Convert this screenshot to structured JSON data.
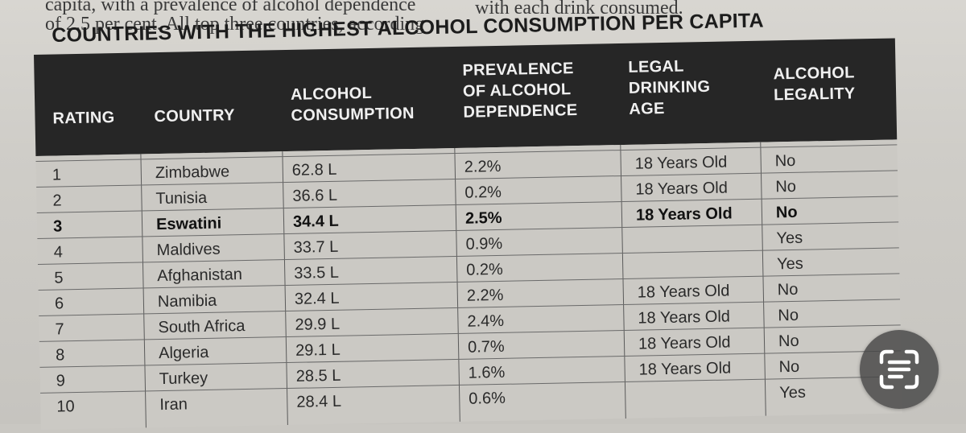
{
  "intro": {
    "line1": "capita, with a prevalence of alcohol dependence",
    "line2": "of 2.5 per cent. All top three countries, according",
    "right1": "with each drink consumed."
  },
  "title": "COUNTRIES WITH THE HIGHEST ALCOHOL CONSUMPTION PER CAPITA",
  "headers": {
    "rating": "RATING",
    "country": "COUNTRY",
    "consumption_1": "ALCOHOL",
    "consumption_2": "CONSUMPTION",
    "dependence_1": "PREVALENCE",
    "dependence_2": "OF ALCOHOL",
    "dependence_3": "DEPENDENCE",
    "age_1": "LEGAL",
    "age_2": "DRINKING",
    "age_3": "AGE",
    "legality_1": "ALCOHOL",
    "legality_2": "LEGALITY"
  },
  "rows": [
    {
      "rating": "1",
      "country": "Zimbabwe",
      "consumption": "62.8 L",
      "dependence": "2.2%",
      "age": "18 Years Old",
      "legality": "No"
    },
    {
      "rating": "2",
      "country": "Tunisia",
      "consumption": "36.6 L",
      "dependence": "0.2%",
      "age": "18 Years Old",
      "legality": "No"
    },
    {
      "rating": "3",
      "country": "Eswatini",
      "consumption": "34.4 L",
      "dependence": "2.5%",
      "age": "18 Years Old",
      "legality": "No"
    },
    {
      "rating": "4",
      "country": "Maldives",
      "consumption": "33.7 L",
      "dependence": "0.9%",
      "age": "",
      "legality": "Yes"
    },
    {
      "rating": "5",
      "country": "Afghanistan",
      "consumption": "33.5 L",
      "dependence": "0.2%",
      "age": "",
      "legality": "Yes"
    },
    {
      "rating": "6",
      "country": "Namibia",
      "consumption": "32.4 L",
      "dependence": "2.2%",
      "age": "18 Years Old",
      "legality": "No"
    },
    {
      "rating": "7",
      "country": "South Africa",
      "consumption": "29.9 L",
      "dependence": "2.4%",
      "age": "18 Years Old",
      "legality": "No"
    },
    {
      "rating": "8",
      "country": "Algeria",
      "consumption": "29.1 L",
      "dependence": "0.7%",
      "age": "18 Years Old",
      "legality": "No"
    },
    {
      "rating": "9",
      "country": "Turkey",
      "consumption": "28.5 L",
      "dependence": "1.6%",
      "age": "18 Years Old",
      "legality": "No"
    },
    {
      "rating": "10",
      "country": "Iran",
      "consumption": "28.4 L",
      "dependence": "0.6%",
      "age": "",
      "legality": "Yes"
    }
  ],
  "lens_icon": "live-text-scan-icon"
}
